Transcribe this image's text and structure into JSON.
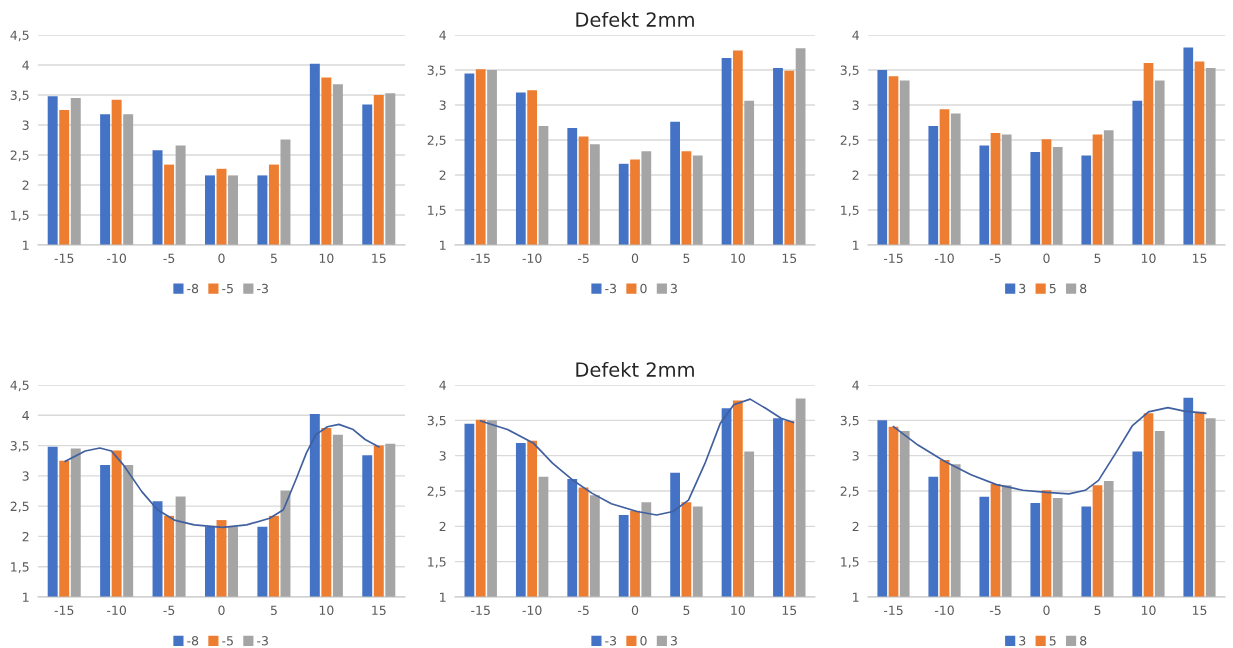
{
  "chart_data": [
    {
      "type": "bar",
      "x": [
        -15,
        -10,
        -5,
        0,
        5,
        10,
        15
      ],
      "xlim": [
        -17.5,
        17.5
      ],
      "xticks": [
        -15,
        -10,
        -5,
        0,
        5,
        10,
        15
      ],
      "ylim": [
        1,
        4.5
      ],
      "yticks": [
        1,
        {
          "value": 1.5,
          "label": "1,5"
        },
        2,
        {
          "value": 2.5,
          "label": "2,5"
        },
        3,
        {
          "value": 3.5,
          "label": "3,5"
        },
        4,
        {
          "value": 4.5,
          "label": "4,5"
        }
      ],
      "grid": "y",
      "legend": "bottom",
      "series": [
        {
          "name": "-8",
          "color": "#4472c4",
          "values": [
            3.48,
            3.18,
            2.58,
            2.16,
            2.16,
            4.02,
            3.34
          ]
        },
        {
          "name": "-5",
          "color": "#ed7d31",
          "values": [
            3.25,
            3.42,
            2.34,
            2.27,
            2.34,
            3.79,
            3.5
          ]
        },
        {
          "name": "-3",
          "color": "#a5a5a5",
          "values": [
            3.45,
            3.18,
            2.66,
            2.16,
            2.76,
            3.68,
            3.53
          ]
        }
      ]
    },
    {
      "type": "bar",
      "title": "Defekt 2mm",
      "x": [
        -15,
        -10,
        -5,
        0,
        5,
        10,
        15
      ],
      "xlim": [
        -17.5,
        17.5
      ],
      "xticks": [
        -15,
        -10,
        -5,
        0,
        5,
        10,
        15
      ],
      "ylim": [
        1,
        4
      ],
      "yticks": [
        1,
        {
          "value": 1.5,
          "label": "1,5"
        },
        2,
        {
          "value": 2.5,
          "label": "2,5"
        },
        3,
        {
          "value": 3.5,
          "label": "3,5"
        },
        4
      ],
      "grid": "y",
      "legend": "bottom",
      "series": [
        {
          "name": "-3",
          "color": "#4472c4",
          "values": [
            3.45,
            3.18,
            2.67,
            2.16,
            2.76,
            3.67,
            3.53
          ]
        },
        {
          "name": "0",
          "color": "#ed7d31",
          "values": [
            3.51,
            3.21,
            2.55,
            2.22,
            2.34,
            3.78,
            3.49
          ]
        },
        {
          "name": "3",
          "color": "#a5a5a5",
          "values": [
            3.5,
            2.7,
            2.44,
            2.34,
            2.28,
            3.06,
            3.81
          ]
        }
      ]
    },
    {
      "type": "bar",
      "x": [
        -15,
        -10,
        -5,
        0,
        5,
        10,
        15
      ],
      "xlim": [
        -17.5,
        17.5
      ],
      "xticks": [
        -15,
        -10,
        -5,
        0,
        5,
        10,
        15
      ],
      "ylim": [
        1,
        4
      ],
      "yticks": [
        1,
        {
          "value": 1.5,
          "label": "1,5"
        },
        2,
        {
          "value": 2.5,
          "label": "2,5"
        },
        3,
        {
          "value": 3.5,
          "label": "3,5"
        },
        4
      ],
      "grid": "y",
      "legend": "bottom",
      "series": [
        {
          "name": "3",
          "color": "#4472c4",
          "values": [
            3.5,
            2.7,
            2.42,
            2.33,
            2.28,
            3.06,
            3.82
          ]
        },
        {
          "name": "5",
          "color": "#ed7d31",
          "values": [
            3.41,
            2.94,
            2.6,
            2.51,
            2.58,
            3.6,
            3.62
          ]
        },
        {
          "name": "8",
          "color": "#a5a5a5",
          "values": [
            3.35,
            2.88,
            2.58,
            2.4,
            2.64,
            3.35,
            3.53
          ]
        }
      ]
    },
    {
      "type": "bar",
      "x": [
        -15,
        -10,
        -5,
        0,
        5,
        10,
        15
      ],
      "xlim": [
        -17.5,
        17.5
      ],
      "xticks": [
        -15,
        -10,
        -5,
        0,
        5,
        10,
        15
      ],
      "ylim": [
        1,
        4.5
      ],
      "yticks": [
        1,
        {
          "value": 1.5,
          "label": "1,5"
        },
        2,
        {
          "value": 2.5,
          "label": "2,5"
        },
        3,
        {
          "value": 3.5,
          "label": "3,5"
        },
        4,
        {
          "value": 4.5,
          "label": "4,5"
        }
      ],
      "grid": "y",
      "legend": "bottom",
      "series": [
        {
          "name": "-8",
          "color": "#4472c4",
          "values": [
            3.48,
            3.18,
            2.58,
            2.16,
            2.16,
            4.02,
            3.34
          ]
        },
        {
          "name": "-5",
          "color": "#ed7d31",
          "values": [
            3.25,
            3.42,
            2.34,
            2.27,
            2.34,
            3.79,
            3.5
          ]
        },
        {
          "name": "-3",
          "color": "#a5a5a5",
          "values": [
            3.45,
            3.18,
            2.66,
            2.16,
            2.76,
            3.68,
            3.53
          ]
        },
        {
          "type": "line",
          "color": "#3f5f9f",
          "x": [
            -14.9,
            -13.0,
            -11.6,
            -10.5,
            -9.4,
            -7.6,
            -6.1,
            -4.5,
            -2.6,
            0.1,
            2.4,
            4.6,
            5.9,
            7.1,
            8.1,
            9.0,
            10.1,
            11.2,
            12.5,
            13.7,
            15.0
          ],
          "values": [
            3.24,
            3.41,
            3.46,
            3.41,
            3.19,
            2.74,
            2.44,
            2.27,
            2.19,
            2.15,
            2.19,
            2.3,
            2.44,
            2.94,
            3.38,
            3.68,
            3.81,
            3.85,
            3.77,
            3.6,
            3.48
          ]
        }
      ]
    },
    {
      "type": "bar",
      "title": "Defekt 2mm",
      "x": [
        -15,
        -10,
        -5,
        0,
        5,
        10,
        15
      ],
      "xlim": [
        -17.5,
        17.5
      ],
      "xticks": [
        -15,
        -10,
        -5,
        0,
        5,
        10,
        15
      ],
      "ylim": [
        1,
        4
      ],
      "yticks": [
        1,
        {
          "value": 1.5,
          "label": "1,5"
        },
        2,
        {
          "value": 2.5,
          "label": "2,5"
        },
        3,
        {
          "value": 3.5,
          "label": "3,5"
        },
        4
      ],
      "grid": "y",
      "legend": "bottom",
      "series": [
        {
          "name": "-3",
          "color": "#4472c4",
          "values": [
            3.45,
            3.18,
            2.67,
            2.16,
            2.76,
            3.67,
            3.53
          ]
        },
        {
          "name": "0",
          "color": "#ed7d31",
          "values": [
            3.51,
            3.21,
            2.55,
            2.22,
            2.34,
            3.78,
            3.49
          ]
        },
        {
          "name": "3",
          "color": "#a5a5a5",
          "values": [
            3.5,
            2.7,
            2.44,
            2.34,
            2.28,
            3.06,
            3.81
          ]
        },
        {
          "type": "line",
          "color": "#3f5f9f",
          "x": [
            -15.0,
            -12.4,
            -9.9,
            -8.0,
            -6.1,
            -4.2,
            -2.3,
            0.2,
            2.1,
            3.7,
            5.2,
            6.8,
            8.3,
            9.6,
            11.2,
            12.7,
            14.2,
            15.4
          ],
          "values": [
            3.49,
            3.37,
            3.18,
            2.89,
            2.66,
            2.47,
            2.32,
            2.21,
            2.16,
            2.21,
            2.37,
            2.89,
            3.46,
            3.72,
            3.8,
            3.67,
            3.53,
            3.47
          ]
        }
      ]
    },
    {
      "type": "bar",
      "x": [
        -15,
        -10,
        -5,
        0,
        5,
        10,
        15
      ],
      "xlim": [
        -17.5,
        17.5
      ],
      "xticks": [
        -15,
        -10,
        -5,
        0,
        5,
        10,
        15
      ],
      "ylim": [
        1,
        4
      ],
      "yticks": [
        1,
        {
          "value": 1.5,
          "label": "1,5"
        },
        2,
        {
          "value": 2.5,
          "label": "2,5"
        },
        3,
        {
          "value": 3.5,
          "label": "3,5"
        },
        4
      ],
      "grid": "y",
      "legend": "bottom",
      "series": [
        {
          "name": "3",
          "color": "#4472c4",
          "values": [
            3.5,
            2.7,
            2.42,
            2.33,
            2.28,
            3.06,
            3.82
          ]
        },
        {
          "name": "5",
          "color": "#ed7d31",
          "values": [
            3.41,
            2.94,
            2.6,
            2.51,
            2.58,
            3.6,
            3.62
          ]
        },
        {
          "name": "8",
          "color": "#a5a5a5",
          "values": [
            3.35,
            2.88,
            2.58,
            2.4,
            2.64,
            3.35,
            3.53
          ]
        },
        {
          "type": "line",
          "color": "#3f5f9f",
          "x": [
            -15.0,
            -12.6,
            -10.0,
            -7.4,
            -4.9,
            -2.3,
            0.0,
            2.2,
            3.8,
            5.1,
            6.8,
            8.4,
            10.0,
            11.9,
            13.5,
            15.6
          ],
          "values": [
            3.41,
            3.15,
            2.92,
            2.73,
            2.59,
            2.51,
            2.48,
            2.46,
            2.51,
            2.65,
            3.04,
            3.42,
            3.62,
            3.68,
            3.63,
            3.6
          ]
        }
      ]
    }
  ]
}
